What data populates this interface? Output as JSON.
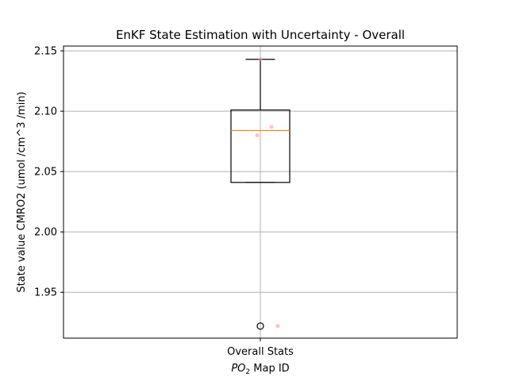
{
  "chart_data": {
    "type": "box",
    "title": "EnKF State Estimation with Uncertainty - Overall",
    "xlabel": {
      "prefix": "PO",
      "subscript": "2",
      "suffix": " Map ID"
    },
    "ylabel": "State value CMRO2 (umol /cm^3 /min)",
    "categories": [
      "Overall Stats"
    ],
    "ylim": [
      1.912,
      2.154
    ],
    "yticks": [
      "1.95",
      "2.00",
      "2.05",
      "2.10",
      "2.15"
    ],
    "grid": true,
    "box": {
      "whisker_low": 2.041,
      "q1": 2.041,
      "median": 2.084,
      "q3": 2.101,
      "whisker_high": 2.143,
      "outliers": [
        1.922
      ]
    },
    "points": [
      {
        "x_offset": 0.0,
        "y": 2.143
      },
      {
        "x_offset": 0.07,
        "y": 2.087
      },
      {
        "x_offset": -0.02,
        "y": 2.08
      },
      {
        "x_offset": 0.11,
        "y": 1.922
      }
    ],
    "colors": {
      "box": "#000000",
      "median": "#ff7f0e",
      "points": "#ff9999",
      "grid": "#b0b0b0"
    }
  }
}
